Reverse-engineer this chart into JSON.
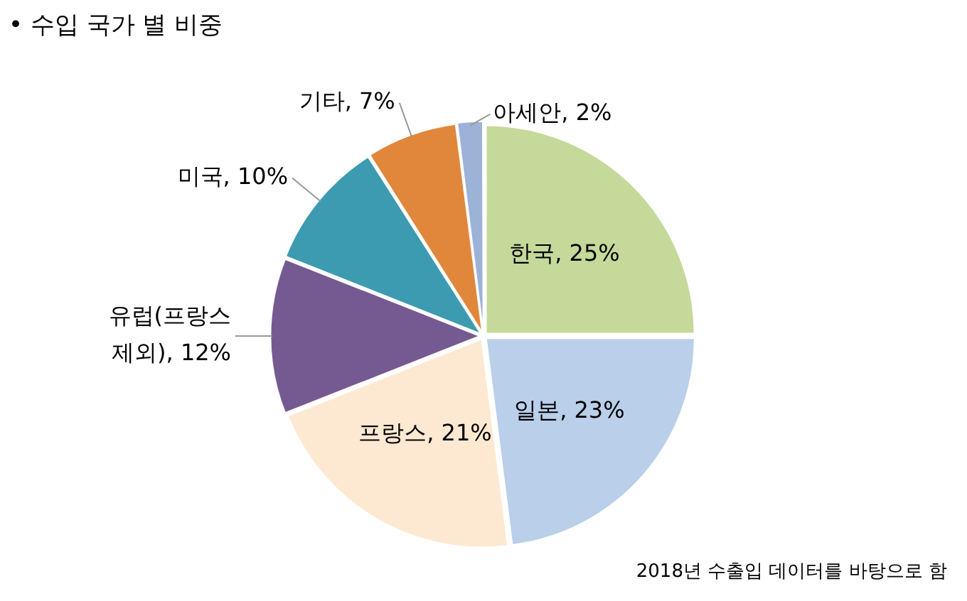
{
  "chart_data": {
    "type": "pie",
    "title": "• 수입 국가 별 비중",
    "categories": [
      "한국",
      "일본",
      "프랑스",
      "유럽(프랑스 제외)",
      "미국",
      "기타",
      "아세안"
    ],
    "values": [
      25,
      23,
      21,
      12,
      10,
      7,
      2
    ],
    "colors": [
      "#c5d99a",
      "#b9cfea",
      "#fde9d2",
      "#755a92",
      "#3c9bb0",
      "#e0873b",
      "#9db2d7"
    ],
    "value_labels": [
      ", 25%",
      ", 23%",
      ", 21%",
      ", 12%",
      ", 10%",
      ", 7%",
      ", 2%"
    ],
    "legend": false,
    "annotations": [
      "2018년 수출입 데이터를 바탕으로 함"
    ]
  }
}
